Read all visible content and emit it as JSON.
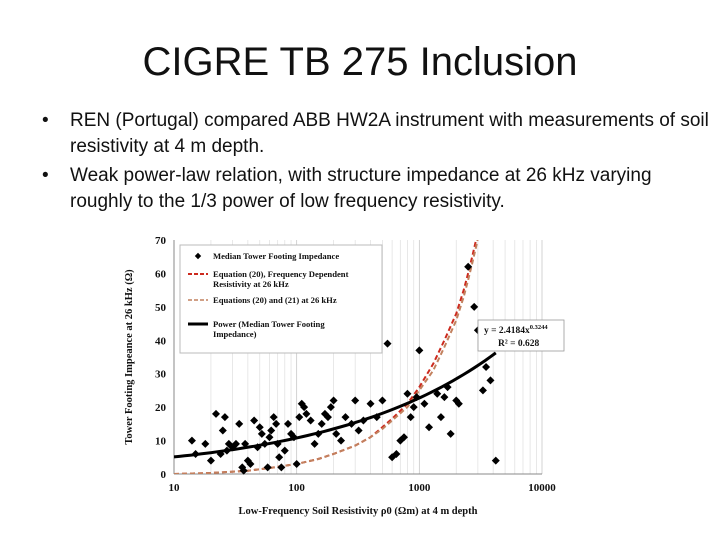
{
  "slide": {
    "title": "CIGRE TB 275 Inclusion",
    "bullets": [
      "REN (Portugal) compared ABB HW2A instrument with measurements of soil resistivity at 4 m depth.",
      "Weak power-law relation, with structure impedance at 26 kHz varying roughly to the 1/3 power of low frequency resistivity."
    ],
    "bullet_glyph": "•"
  },
  "chart_data": {
    "type": "scatter",
    "xlabel": "Low-Frequency Soil Resistivity ρ0 (Ωm) at 4 m depth",
    "ylabel": "Tower Footing Impeance at 26 kHz (Ω)",
    "xscale": "log",
    "xlim": [
      10,
      10000
    ],
    "ylim": [
      0,
      70
    ],
    "x_ticks": [
      "10",
      "100",
      "1000",
      "10000"
    ],
    "y_ticks": [
      "0",
      "10",
      "20",
      "30",
      "40",
      "50",
      "60",
      "70"
    ],
    "grid": "vertical minor log gridlines",
    "legend_position": "top-left",
    "legend": [
      "Median Tower Footing Impedance",
      "Equation (20), Frequency Dependent Resistivity at 26 kHz",
      "Equations (20) and (21) at 26 kHz",
      "Power (Median Tower Footing Impedance)"
    ],
    "annotation": {
      "equation_base": "y = 2.4184x",
      "equation_exp": "0.3244",
      "r2": "R² = 0.628"
    },
    "series": [
      {
        "name": "Median Tower Footing Impedance",
        "marker": "diamond",
        "color": "#000000",
        "points": [
          [
            14,
            10
          ],
          [
            15,
            6
          ],
          [
            18,
            9
          ],
          [
            20,
            4
          ],
          [
            22,
            18
          ],
          [
            24,
            6
          ],
          [
            25,
            13
          ],
          [
            26,
            17
          ],
          [
            27,
            7
          ],
          [
            28,
            9
          ],
          [
            30,
            8
          ],
          [
            32,
            9
          ],
          [
            34,
            15
          ],
          [
            36,
            2
          ],
          [
            37,
            1
          ],
          [
            38,
            9
          ],
          [
            40,
            4
          ],
          [
            42,
            3
          ],
          [
            45,
            16
          ],
          [
            48,
            8
          ],
          [
            50,
            14
          ],
          [
            52,
            12
          ],
          [
            55,
            9
          ],
          [
            58,
            2
          ],
          [
            60,
            11
          ],
          [
            62,
            13
          ],
          [
            65,
            17
          ],
          [
            68,
            15
          ],
          [
            70,
            9
          ],
          [
            72,
            5
          ],
          [
            75,
            2
          ],
          [
            80,
            7
          ],
          [
            85,
            15
          ],
          [
            90,
            12
          ],
          [
            95,
            11
          ],
          [
            100,
            3
          ],
          [
            105,
            17
          ],
          [
            110,
            21
          ],
          [
            115,
            20
          ],
          [
            120,
            18
          ],
          [
            130,
            16
          ],
          [
            140,
            9
          ],
          [
            150,
            12
          ],
          [
            160,
            15
          ],
          [
            170,
            18
          ],
          [
            180,
            17
          ],
          [
            190,
            20
          ],
          [
            200,
            22
          ],
          [
            210,
            12
          ],
          [
            230,
            10
          ],
          [
            250,
            17
          ],
          [
            280,
            15
          ],
          [
            300,
            22
          ],
          [
            320,
            13
          ],
          [
            350,
            16
          ],
          [
            400,
            21
          ],
          [
            450,
            17
          ],
          [
            500,
            22
          ],
          [
            550,
            39
          ],
          [
            600,
            5
          ],
          [
            650,
            6
          ],
          [
            700,
            10
          ],
          [
            750,
            11
          ],
          [
            800,
            24
          ],
          [
            850,
            17
          ],
          [
            900,
            20
          ],
          [
            950,
            23
          ],
          [
            1000,
            37
          ],
          [
            1100,
            21
          ],
          [
            1200,
            14
          ],
          [
            1400,
            24
          ],
          [
            1500,
            17
          ],
          [
            1600,
            23
          ],
          [
            1700,
            26
          ],
          [
            1800,
            12
          ],
          [
            2000,
            22
          ],
          [
            2100,
            21
          ],
          [
            2500,
            62
          ],
          [
            2800,
            50
          ],
          [
            3000,
            43
          ],
          [
            3300,
            25
          ],
          [
            3500,
            32
          ],
          [
            3800,
            28
          ],
          [
            4200,
            4
          ]
        ]
      },
      {
        "name": "Equation (20), Frequency Dependent Resistivity at 26 kHz",
        "line_style": "dashed",
        "color": "#cc2a1e",
        "x": [
          10,
          20,
          40,
          60,
          100,
          150,
          200,
          300,
          400,
          500,
          600,
          800,
          1000,
          1300,
          1600,
          2000,
          2300,
          2500,
          2700,
          2900,
          3100
        ],
        "y": [
          0,
          0.3,
          1,
          1.8,
          3,
          4.5,
          6,
          8.5,
          11,
          14,
          16.5,
          21,
          26,
          33,
          40,
          48,
          55,
          60,
          65,
          70,
          75
        ]
      },
      {
        "name": "Equations (20) and (21) at 26 kHz",
        "line_style": "dashed",
        "color": "#c2815e",
        "x": [
          10,
          20,
          40,
          60,
          100,
          150,
          200,
          300,
          400,
          500,
          600,
          800,
          1000,
          1300,
          1600,
          2000,
          2300,
          2500,
          2700,
          2900,
          3100
        ],
        "y": [
          0,
          0.3,
          1,
          1.8,
          3,
          4.5,
          6,
          8.5,
          11,
          13.5,
          16,
          20,
          25,
          31,
          38,
          46,
          53,
          58,
          63,
          68,
          73
        ]
      },
      {
        "name": "Power (Median Tower Footing Impedance)",
        "line_style": "solid",
        "color": "#000000",
        "equation": {
          "a": 2.4184,
          "b": 0.3244
        },
        "x_range": [
          10,
          4200
        ]
      }
    ]
  }
}
